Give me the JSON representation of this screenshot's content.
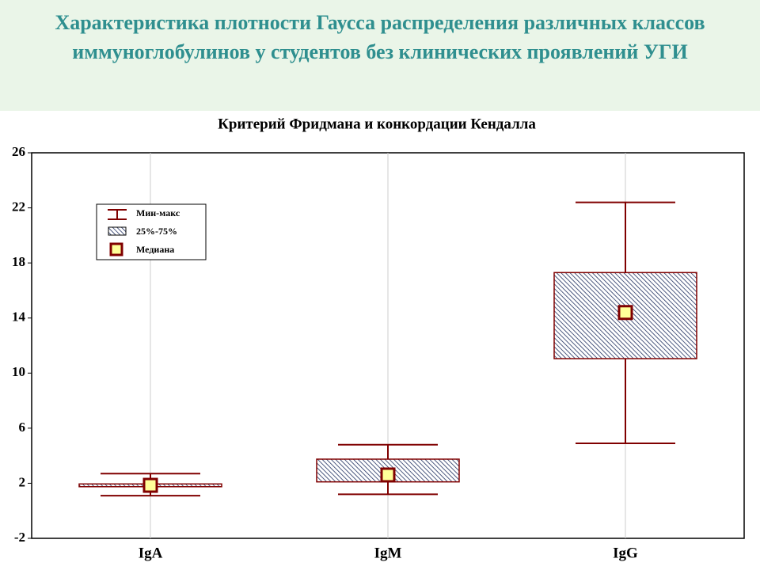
{
  "slide_title": "Характеристика плотности Гаусса распределения различных классов иммуноглобулинов у студентов без клинических проявлений УГИ",
  "chart_data": {
    "type": "box",
    "title": "Критерий Фридмана и конкордации Кендалла",
    "categories": [
      "IgA",
      "IgM",
      "IgG"
    ],
    "min": [
      1.1,
      1.2,
      4.9
    ],
    "q1": [
      1.75,
      2.1,
      11.05
    ],
    "median": [
      1.85,
      2.6,
      14.4
    ],
    "q3": [
      1.95,
      3.75,
      17.3
    ],
    "max": [
      2.7,
      4.8,
      22.4
    ],
    "legend": [
      "Мин-макс",
      "25%-75%",
      "Медиана"
    ],
    "whisker_color": "#800000",
    "box_color": "#800000",
    "hatch_color": "#1f2f5f",
    "median_fill": "#ffff99",
    "ylim": [
      -2,
      26
    ],
    "yticks": [
      -2,
      2,
      6,
      10,
      14,
      18,
      22,
      26
    ],
    "grid": true
  }
}
